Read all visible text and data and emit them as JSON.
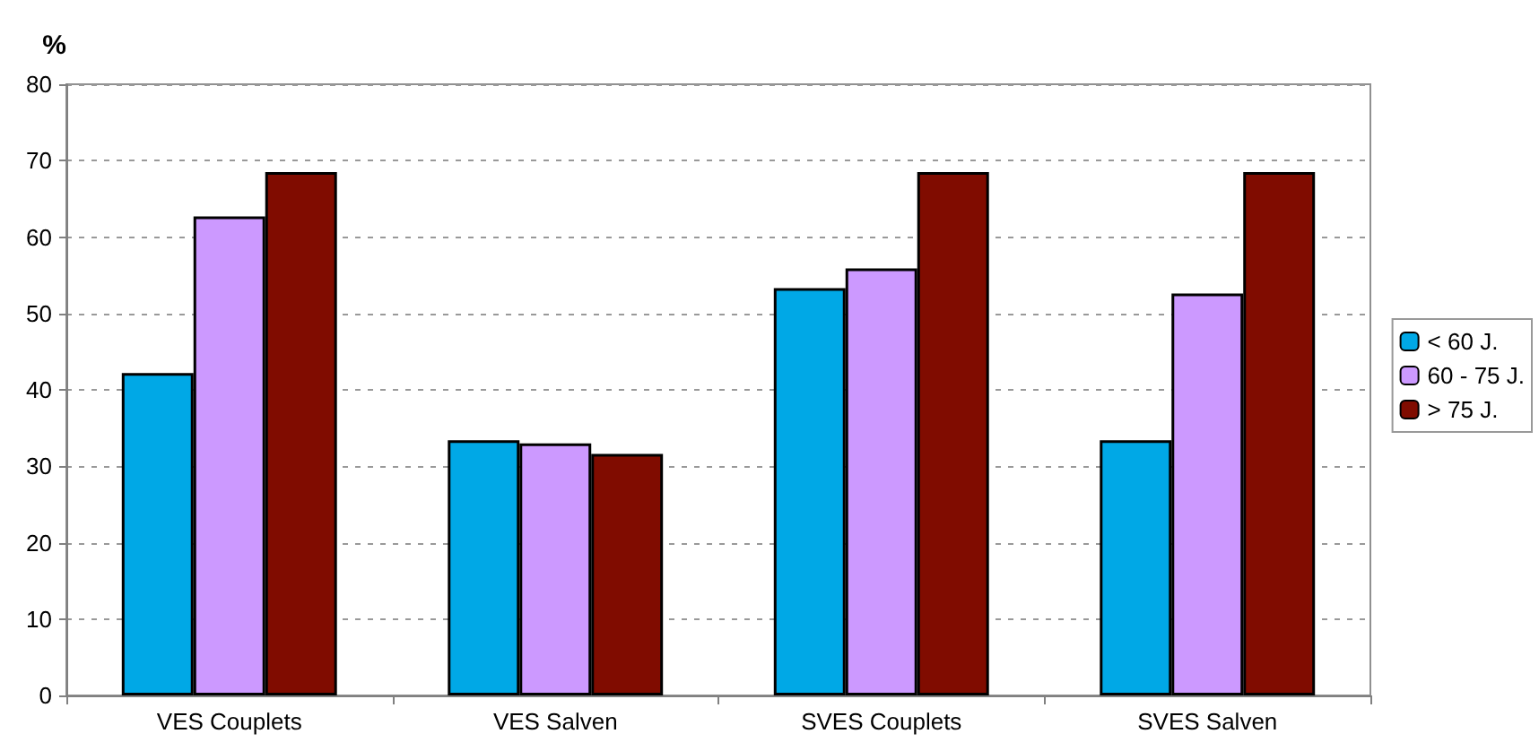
{
  "chart_data": {
    "type": "bar",
    "ylabel": "%",
    "categories": [
      "VES Couplets",
      "VES Salven",
      "SVES Couplets",
      "SVES Salven"
    ],
    "series": [
      {
        "name": "< 60 J.",
        "color": "#00a8e6",
        "values": [
          42.2,
          33.4,
          53.3,
          33.4
        ]
      },
      {
        "name": "60 - 75 J.",
        "color": "#cc99ff",
        "values": [
          62.7,
          33.0,
          55.9,
          52.6
        ]
      },
      {
        "name": "> 75 J.",
        "color": "#800c00",
        "values": [
          68.5,
          31.6,
          68.5,
          68.5
        ]
      }
    ],
    "ylim": [
      0,
      80
    ],
    "yticks": [
      0,
      10,
      20,
      30,
      40,
      50,
      60,
      70,
      80
    ],
    "grid": "y",
    "legend": "right"
  }
}
